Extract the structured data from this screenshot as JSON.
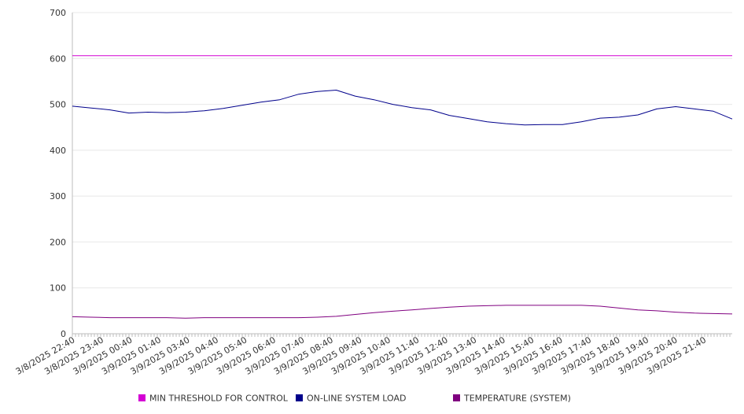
{
  "chart_data": {
    "type": "line",
    "title": "",
    "xlabel": "",
    "ylabel": "",
    "ylim": [
      0,
      700
    ],
    "yticks": [
      0,
      100,
      200,
      300,
      400,
      500,
      600,
      700
    ],
    "grid": true,
    "legend_placement": "bottom",
    "x_tick_labels": [
      "3/8/2025 22:40",
      "3/8/2025 23:40",
      "3/9/2025 00:40",
      "3/9/2025 01:40",
      "3/9/2025 03:40",
      "3/9/2025 04:40",
      "3/9/2025 05:40",
      "3/9/2025 06:40",
      "3/9/2025 07:40",
      "3/9/2025 08:40",
      "3/9/2025 09:40",
      "3/9/2025 10:40",
      "3/9/2025 11:40",
      "3/9/2025 12:40",
      "3/9/2025 13:40",
      "3/9/2025 14:40",
      "3/9/2025 15:40",
      "3/9/2025 16:40",
      "3/9/2025 17:40",
      "3/9/2025 18:40",
      "3/9/2025 19:40",
      "3/9/2025 20:40",
      "3/9/2025 21:40"
    ],
    "series": [
      {
        "name": "MIN THRESHOLD FOR CONTROL",
        "color": "#d400d4",
        "values": [
          606,
          606,
          606,
          606,
          606,
          606,
          606,
          606,
          606,
          606,
          606,
          606,
          606,
          606,
          606,
          606,
          606,
          606,
          606,
          606,
          606,
          606,
          606,
          606
        ]
      },
      {
        "name": "ON-LINE SYSTEM LOAD",
        "color": "#00008b",
        "values": [
          496,
          492,
          488,
          481,
          483,
          482,
          483,
          486,
          491,
          498,
          505,
          510,
          522,
          528,
          531,
          518,
          510,
          500,
          493,
          488,
          476,
          469,
          462,
          458,
          455,
          456,
          456,
          462,
          470,
          472,
          477,
          490,
          495,
          490,
          485,
          468
        ]
      },
      {
        "name": "TEMPERATURE (SYSTEM)",
        "color": "#800080",
        "values": [
          37,
          36,
          35,
          35,
          35,
          35,
          34,
          35,
          35,
          35,
          35,
          35,
          35,
          36,
          38,
          42,
          46,
          49,
          52,
          55,
          58,
          60,
          61,
          62,
          62,
          62,
          62,
          62,
          60,
          56,
          52,
          50,
          47,
          45,
          44,
          43
        ]
      }
    ]
  }
}
